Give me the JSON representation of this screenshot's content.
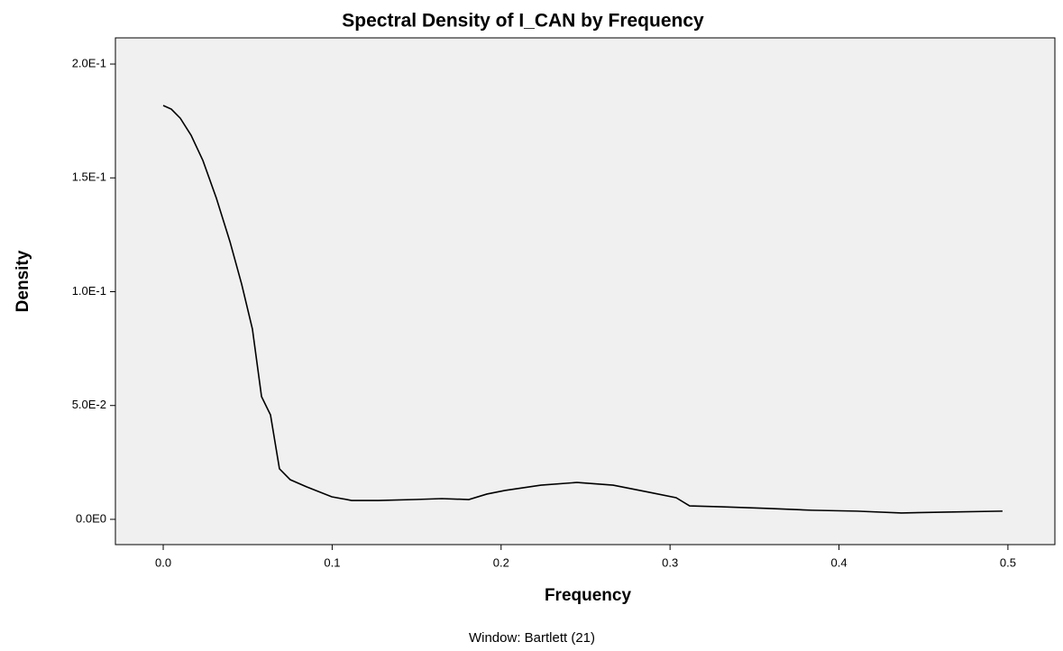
{
  "chart_data": {
    "type": "line",
    "title": "Spectral Density of I_CAN by Frequency",
    "x_label": "Frequency",
    "y_label": "Density",
    "annotation": "Window: Bartlett (21)",
    "xlim": [
      -0.0283,
      0.5278
    ],
    "ylim": [
      -0.0111,
      0.2115
    ],
    "xticks": [
      {
        "value": 0,
        "label": "0.0"
      },
      0.1,
      0.2,
      0.3,
      0.4,
      0.5
    ],
    "yticks": [
      {
        "value": 0,
        "label": "0.0E0"
      },
      {
        "value": 0.05,
        "label": "5.0E-2"
      },
      {
        "value": 0.1,
        "label": "1.0E-1"
      },
      {
        "value": 0.15,
        "label": "1.5E-1"
      },
      {
        "value": 0.2,
        "label": "2.0E-1"
      }
    ],
    "x": [
      0,
      0.0048,
      0.0101,
      0.0165,
      0.0235,
      0.0315,
      0.0395,
      0.0464,
      0.0528,
      0.0582,
      0.0635,
      0.0688,
      0.0752,
      0.0848,
      0.0998,
      0.1115,
      0.1275,
      0.1489,
      0.1649,
      0.1809,
      0.1916,
      0.2023,
      0.2236,
      0.2449,
      0.2663,
      0.2876,
      0.3036,
      0.3116,
      0.3303,
      0.357,
      0.3837,
      0.4104,
      0.437,
      0.4637,
      0.4968
    ],
    "series": [
      {
        "name": "Density",
        "color": "#000000",
        "values": [
          0.1818,
          0.1802,
          0.1762,
          0.1687,
          0.1576,
          0.141,
          0.122,
          0.1034,
          0.0836,
          0.0539,
          0.0459,
          0.0222,
          0.0174,
          0.0143,
          0.0099,
          0.0083,
          0.0083,
          0.0087,
          0.0091,
          0.0087,
          0.0111,
          0.0127,
          0.015,
          0.0162,
          0.015,
          0.0119,
          0.0095,
          0.0059,
          0.0055,
          0.0048,
          0.004,
          0.0036,
          0.0028,
          0.0032,
          0.0036
        ]
      }
    ]
  }
}
